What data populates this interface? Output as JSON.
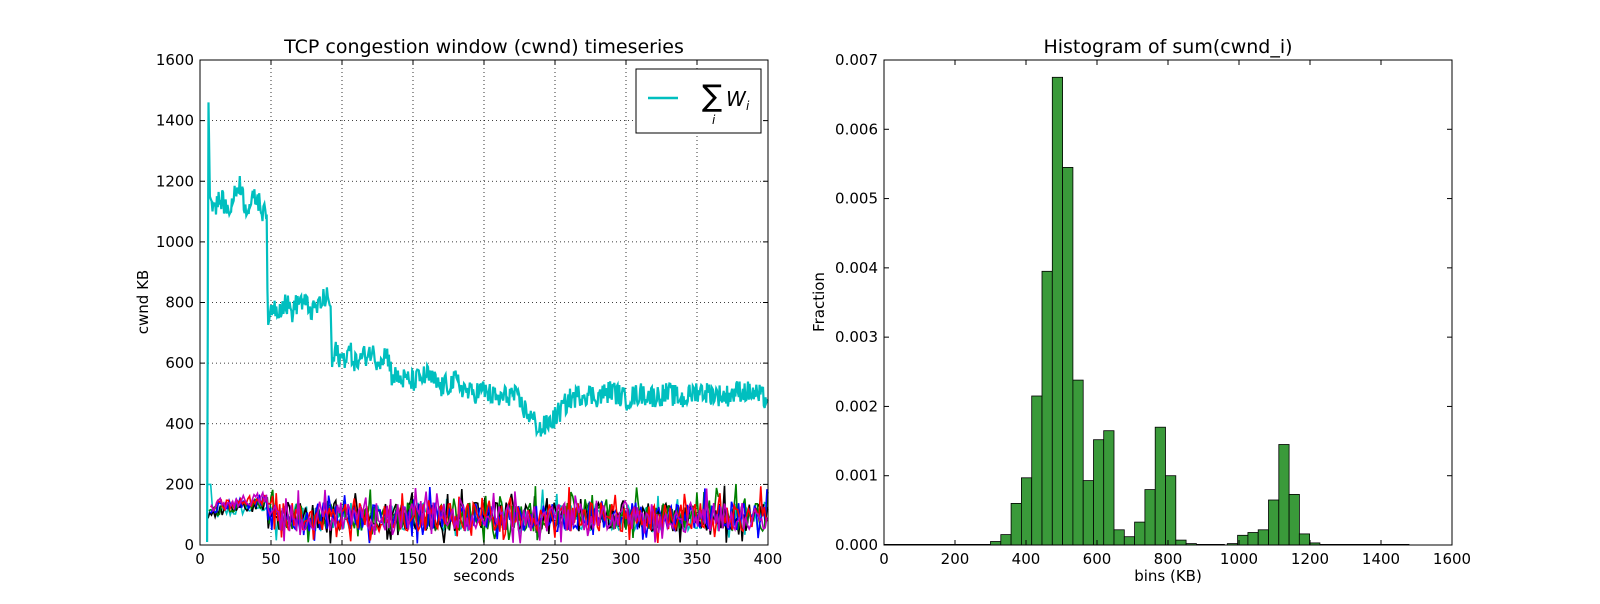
{
  "chart_data": [
    {
      "type": "line",
      "title": "TCP congestion window (cwnd) timeseries",
      "xlabel": "seconds",
      "ylabel": "cwnd KB",
      "xlim": [
        0,
        400
      ],
      "ylim": [
        0,
        1600
      ],
      "x_ticks": [
        "0",
        "50",
        "100",
        "150",
        "200",
        "250",
        "300",
        "350",
        "400"
      ],
      "y_ticks": [
        "0",
        "200",
        "400",
        "600",
        "800",
        "1000",
        "1200",
        "1400",
        "1600"
      ],
      "grid": "dotted",
      "legend": {
        "placement": "top-right",
        "entries": [
          {
            "label_base": "∑",
            "label_var": "W",
            "label_sub": "i",
            "label_sub_under": "i",
            "color": "#00bfbf"
          }
        ]
      },
      "sum_series": {
        "color": "#00bfbf",
        "points": [
          [
            5,
            10
          ],
          [
            6,
            1460
          ],
          [
            7,
            1150
          ],
          [
            10,
            1120
          ],
          [
            15,
            1140
          ],
          [
            20,
            1100
          ],
          [
            25,
            1160
          ],
          [
            28,
            1200
          ],
          [
            32,
            1110
          ],
          [
            36,
            1130
          ],
          [
            40,
            1150
          ],
          [
            44,
            1100
          ],
          [
            46,
            1140
          ],
          [
            47,
            1050
          ],
          [
            48,
            690
          ],
          [
            50,
            790
          ],
          [
            55,
            780
          ],
          [
            60,
            800
          ],
          [
            65,
            770
          ],
          [
            70,
            810
          ],
          [
            75,
            790
          ],
          [
            80,
            770
          ],
          [
            85,
            800
          ],
          [
            90,
            820
          ],
          [
            92,
            780
          ],
          [
            93,
            580
          ],
          [
            95,
            640
          ],
          [
            100,
            610
          ],
          [
            105,
            640
          ],
          [
            110,
            600
          ],
          [
            115,
            620
          ],
          [
            120,
            640
          ],
          [
            125,
            610
          ],
          [
            130,
            630
          ],
          [
            133,
            620
          ],
          [
            135,
            560
          ],
          [
            140,
            550
          ],
          [
            150,
            540
          ],
          [
            160,
            560
          ],
          [
            170,
            520
          ],
          [
            180,
            540
          ],
          [
            190,
            500
          ],
          [
            200,
            510
          ],
          [
            210,
            480
          ],
          [
            220,
            500
          ],
          [
            230,
            440
          ],
          [
            240,
            380
          ],
          [
            250,
            420
          ],
          [
            260,
            480
          ],
          [
            270,
            500
          ],
          [
            280,
            490
          ],
          [
            290,
            510
          ],
          [
            300,
            480
          ],
          [
            310,
            500
          ],
          [
            320,
            490
          ],
          [
            330,
            500
          ],
          [
            340,
            480
          ],
          [
            350,
            510
          ],
          [
            360,
            500
          ],
          [
            370,
            490
          ],
          [
            380,
            510
          ],
          [
            390,
            500
          ],
          [
            400,
            480
          ]
        ]
      },
      "flow_colors": [
        "#00bfbf",
        "#000000",
        "#008000",
        "#0000ff",
        "#ff0000",
        "#bf00bf"
      ]
    },
    {
      "type": "bar",
      "title": "Histogram of sum(cwnd_i)",
      "xlabel": "bins (KB)",
      "ylabel": "Fraction",
      "xlim": [
        0,
        1600
      ],
      "ylim": [
        0,
        0.007
      ],
      "x_ticks": [
        "0",
        "200",
        "400",
        "600",
        "800",
        "1000",
        "1200",
        "1400",
        "1600"
      ],
      "y_ticks": [
        "0.000",
        "0.001",
        "0.002",
        "0.003",
        "0.004",
        "0.005",
        "0.006",
        "0.007"
      ],
      "bin_width": 29,
      "bar_color": "#3a9a3a",
      "bins": [
        {
          "x": 300,
          "value": 5e-05
        },
        {
          "x": 329,
          "value": 0.00015
        },
        {
          "x": 358,
          "value": 0.0006
        },
        {
          "x": 387,
          "value": 0.00097
        },
        {
          "x": 416,
          "value": 0.00215
        },
        {
          "x": 445,
          "value": 0.00395
        },
        {
          "x": 474,
          "value": 0.00675
        },
        {
          "x": 503,
          "value": 0.00545
        },
        {
          "x": 532,
          "value": 0.00238
        },
        {
          "x": 561,
          "value": 0.00093
        },
        {
          "x": 590,
          "value": 0.00152
        },
        {
          "x": 619,
          "value": 0.00165
        },
        {
          "x": 648,
          "value": 0.00022
        },
        {
          "x": 677,
          "value": 0.00012
        },
        {
          "x": 706,
          "value": 0.00033
        },
        {
          "x": 735,
          "value": 0.0008
        },
        {
          "x": 764,
          "value": 0.0017
        },
        {
          "x": 793,
          "value": 0.001
        },
        {
          "x": 822,
          "value": 7e-05
        },
        {
          "x": 851,
          "value": 2e-05
        },
        {
          "x": 967,
          "value": 2e-05
        },
        {
          "x": 996,
          "value": 0.00014
        },
        {
          "x": 1025,
          "value": 0.00018
        },
        {
          "x": 1054,
          "value": 0.00022
        },
        {
          "x": 1083,
          "value": 0.00065
        },
        {
          "x": 1112,
          "value": 0.00145
        },
        {
          "x": 1141,
          "value": 0.00073
        },
        {
          "x": 1170,
          "value": 0.00016
        },
        {
          "x": 1199,
          "value": 3e-05
        }
      ]
    }
  ]
}
